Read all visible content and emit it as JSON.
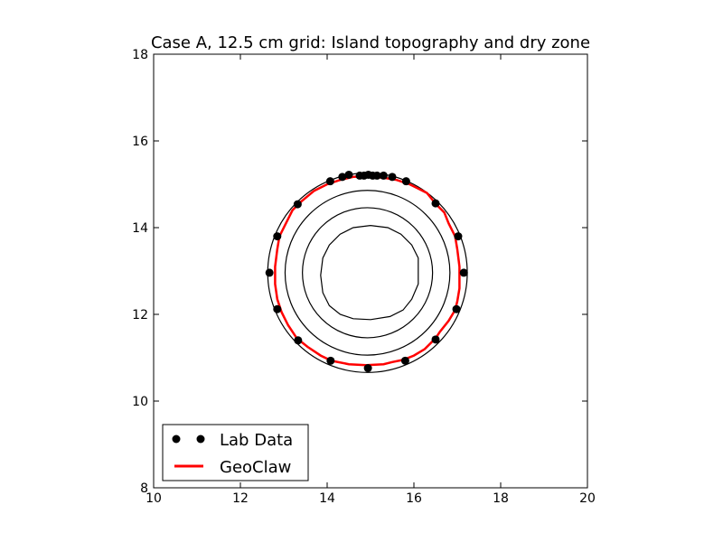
{
  "chart_data": {
    "type": "line",
    "title": "Case A, 12.5 cm grid:  Island topography and dry zone",
    "xlabel": "",
    "ylabel": "",
    "xlim": [
      10,
      20
    ],
    "ylim": [
      8,
      18
    ],
    "x_ticks": [
      "10",
      "12",
      "14",
      "16",
      "18",
      "20"
    ],
    "y_ticks": [
      "8",
      "10",
      "12",
      "14",
      "16",
      "18"
    ],
    "grid": false,
    "legend_position": "lower-left",
    "island_center": [
      14.93,
      12.96
    ],
    "contour_radii": [
      2.3,
      1.9,
      1.5
    ],
    "inner_contour": [
      [
        15.0,
        14.05
      ],
      [
        15.4,
        14.0
      ],
      [
        15.7,
        13.85
      ],
      [
        15.95,
        13.6
      ],
      [
        16.1,
        13.3
      ],
      [
        16.1,
        12.7
      ],
      [
        15.95,
        12.35
      ],
      [
        15.75,
        12.1
      ],
      [
        15.45,
        11.95
      ],
      [
        15.0,
        11.88
      ],
      [
        14.6,
        11.9
      ],
      [
        14.3,
        12.0
      ],
      [
        14.05,
        12.2
      ],
      [
        13.9,
        12.5
      ],
      [
        13.85,
        12.9
      ],
      [
        13.9,
        13.3
      ],
      [
        14.05,
        13.6
      ],
      [
        14.3,
        13.85
      ],
      [
        14.6,
        14.0
      ],
      [
        15.0,
        14.05
      ]
    ],
    "series": [
      {
        "name": "Lab Data",
        "color": "#000000",
        "marker": "circle",
        "points": [
          [
            14.95,
            15.22
          ],
          [
            15.05,
            15.2
          ],
          [
            14.85,
            15.2
          ],
          [
            15.15,
            15.2
          ],
          [
            14.75,
            15.2
          ],
          [
            15.3,
            15.2
          ],
          [
            14.5,
            15.22
          ],
          [
            14.35,
            15.17
          ],
          [
            15.5,
            15.17
          ],
          [
            14.07,
            15.07
          ],
          [
            15.82,
            15.07
          ],
          [
            13.32,
            14.54
          ],
          [
            16.5,
            14.56
          ],
          [
            12.85,
            13.8
          ],
          [
            17.02,
            13.8
          ],
          [
            12.67,
            12.96
          ],
          [
            17.15,
            12.96
          ],
          [
            12.85,
            12.12
          ],
          [
            16.98,
            12.12
          ],
          [
            13.33,
            11.4
          ],
          [
            16.5,
            11.42
          ],
          [
            14.08,
            10.93
          ],
          [
            15.8,
            10.93
          ],
          [
            14.94,
            10.76
          ]
        ]
      },
      {
        "name": "GeoClaw",
        "color": "#ff0000",
        "points": [
          [
            14.9,
            15.18
          ],
          [
            15.3,
            15.15
          ],
          [
            15.6,
            15.1
          ],
          [
            15.9,
            15.0
          ],
          [
            16.1,
            14.9
          ],
          [
            16.3,
            14.8
          ],
          [
            16.5,
            14.55
          ],
          [
            16.7,
            14.35
          ],
          [
            16.8,
            14.1
          ],
          [
            16.95,
            13.8
          ],
          [
            17.0,
            13.5
          ],
          [
            17.05,
            13.1
          ],
          [
            17.05,
            12.6
          ],
          [
            17.0,
            12.3
          ],
          [
            16.95,
            12.1
          ],
          [
            16.8,
            11.85
          ],
          [
            16.6,
            11.6
          ],
          [
            16.5,
            11.45
          ],
          [
            16.25,
            11.2
          ],
          [
            16.0,
            11.05
          ],
          [
            15.75,
            10.95
          ],
          [
            15.5,
            10.9
          ],
          [
            15.3,
            10.85
          ],
          [
            14.9,
            10.83
          ],
          [
            14.5,
            10.85
          ],
          [
            14.1,
            10.93
          ],
          [
            13.85,
            11.05
          ],
          [
            13.55,
            11.25
          ],
          [
            13.3,
            11.45
          ],
          [
            13.1,
            11.75
          ],
          [
            12.95,
            12.05
          ],
          [
            12.85,
            12.35
          ],
          [
            12.8,
            12.7
          ],
          [
            12.8,
            13.1
          ],
          [
            12.85,
            13.5
          ],
          [
            12.9,
            13.8
          ],
          [
            13.05,
            14.1
          ],
          [
            13.2,
            14.4
          ],
          [
            13.4,
            14.6
          ],
          [
            13.7,
            14.85
          ],
          [
            14.0,
            15.0
          ],
          [
            14.3,
            15.1
          ],
          [
            14.6,
            15.17
          ],
          [
            14.9,
            15.18
          ]
        ]
      }
    ]
  }
}
